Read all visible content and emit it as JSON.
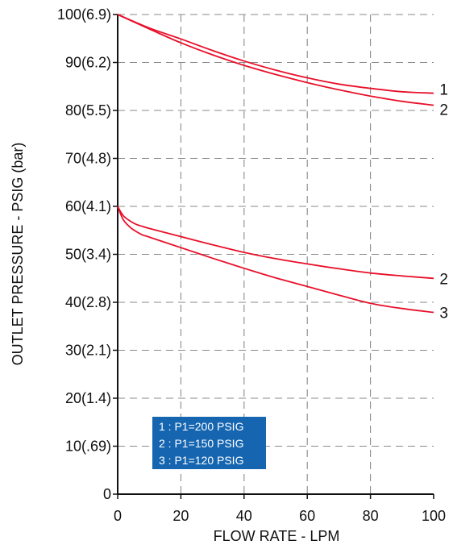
{
  "chart_data": {
    "type": "line",
    "xlabel": "FLOW RATE - LPM",
    "ylabel": "OUTLET PRESSURE - PSIG (bar)",
    "xlim": [
      0,
      100
    ],
    "ylim": [
      0,
      100
    ],
    "grid": true,
    "grid_style": "dashed",
    "x_ticks": [
      {
        "value": 0,
        "label": "0"
      },
      {
        "value": 20,
        "label": "20"
      },
      {
        "value": 40,
        "label": "40"
      },
      {
        "value": 60,
        "label": "60"
      },
      {
        "value": 80,
        "label": "80"
      },
      {
        "value": 100,
        "label": "100"
      }
    ],
    "y_ticks": [
      {
        "value": 0,
        "label": "0"
      },
      {
        "value": 10,
        "label": "10(.69)"
      },
      {
        "value": 20,
        "label": "20(1.4)"
      },
      {
        "value": 30,
        "label": "30(2.1)"
      },
      {
        "value": 40,
        "label": "40(2.8)"
      },
      {
        "value": 50,
        "label": "50(3.4)"
      },
      {
        "value": 60,
        "label": "60(4.1)"
      },
      {
        "value": 70,
        "label": "70(4.8)"
      },
      {
        "value": 80,
        "label": "80(5.5)"
      },
      {
        "value": 90,
        "label": "90(6.2)"
      },
      {
        "value": 100,
        "label": "100(6.9)"
      }
    ],
    "line_color": "#e8102a",
    "series": [
      {
        "label": "1",
        "x": [
          0,
          10,
          20,
          30,
          40,
          50,
          60,
          70,
          80,
          90,
          100
        ],
        "y": [
          100,
          97.2,
          94.9,
          92.5,
          90.3,
          88.4,
          86.8,
          85.5,
          84.6,
          83.9,
          83.6
        ]
      },
      {
        "label": "2",
        "x": [
          0,
          10,
          20,
          30,
          40,
          50,
          60,
          70,
          80,
          90,
          100
        ],
        "y": [
          100,
          97.0,
          94.1,
          91.6,
          89.4,
          87.5,
          85.8,
          84.3,
          83.0,
          81.9,
          81.1
        ]
      },
      {
        "label": "2",
        "x": [
          0,
          1,
          2,
          4,
          6,
          8,
          10,
          20,
          30,
          40,
          50,
          60,
          70,
          80,
          90,
          100
        ],
        "y": [
          60,
          58.8,
          57.9,
          56.9,
          56.2,
          55.8,
          55.4,
          53.7,
          52.0,
          50.4,
          49.1,
          48.0,
          47.0,
          46.1,
          45.5,
          45.0
        ]
      },
      {
        "label": "3",
        "x": [
          0,
          1,
          2,
          4,
          6,
          8,
          10,
          20,
          30,
          40,
          50,
          60,
          70,
          80,
          90,
          100
        ],
        "y": [
          60,
          58.3,
          57.0,
          55.6,
          54.7,
          54.0,
          53.6,
          51.4,
          49.2,
          47.1,
          45.1,
          43.3,
          41.5,
          39.8,
          38.7,
          37.9
        ]
      }
    ],
    "legend": {
      "position": "bottom-left",
      "background": "#1565b0",
      "entries": [
        "1 : P1=200 PSIG",
        "2 : P1=150 PSIG",
        "3 : P1=120 PSIG"
      ]
    }
  }
}
